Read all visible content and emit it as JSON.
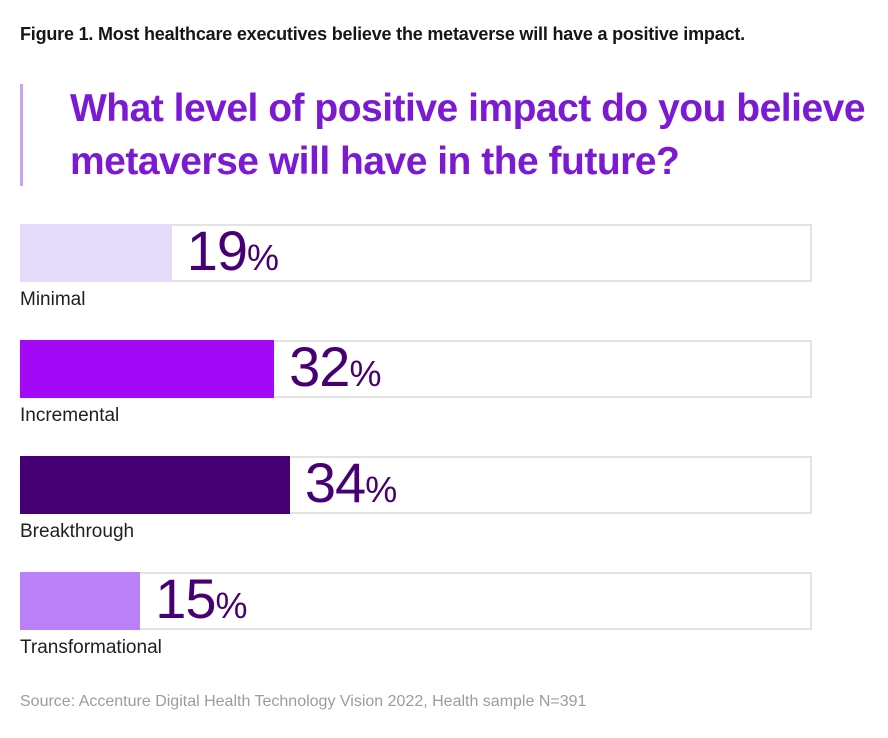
{
  "figure": {
    "caption": "Figure 1. Most healthcare executives believe the metaverse will have a positive impact.",
    "source": "Source: Accenture Digital Health Technology Vision 2022, Health sample N=391"
  },
  "chart_data": {
    "type": "bar",
    "orientation": "horizontal",
    "title": "What level of positive impact do you believe metaverse will have in the future?",
    "categories": [
      "Minimal",
      "Incremental",
      "Breakthrough",
      "Transformational"
    ],
    "values": [
      19,
      32,
      34,
      15
    ],
    "unit": "%",
    "xlim": [
      0,
      100
    ],
    "grid": false,
    "legend": false,
    "value_labels_shown": true,
    "bar_colors": [
      "#e3dbf9",
      "#a309f7",
      "#460073",
      "#ba80f8"
    ]
  },
  "colors": {
    "title_text": "#7b1ad2",
    "accent_line": "#c9a2f1",
    "value_label": "#460073",
    "track_border": "#e3e3e3",
    "category_label": "#1f1f1f",
    "caption_text": "#161616",
    "source_text": "#9c9c9c"
  }
}
